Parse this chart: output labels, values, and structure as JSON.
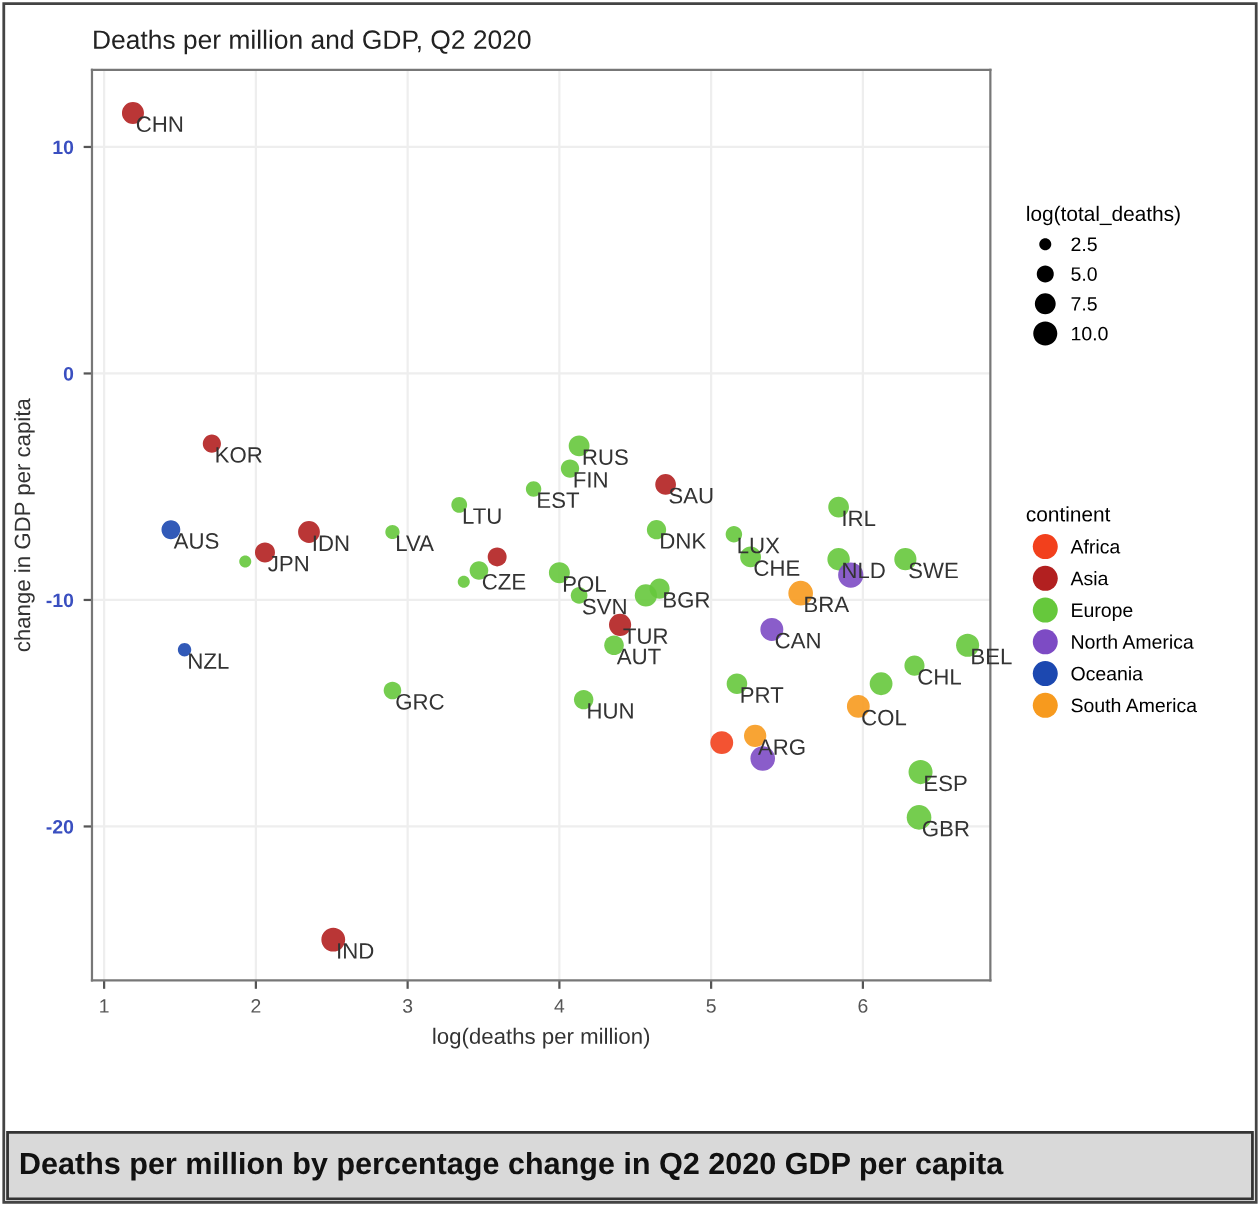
{
  "chart_data": {
    "type": "bubble",
    "title": "Deaths per million and GDP, Q2 2020",
    "xlabel": "log(deaths per million)",
    "ylabel": "change in GDP per capita",
    "legend_title": "continent",
    "xlim": [
      0.92,
      6.84
    ],
    "ylim": [
      -26.8,
      13.4
    ],
    "xticks": [
      1,
      2,
      3,
      4,
      5,
      6
    ],
    "yticks": [
      -20,
      -10,
      0,
      10
    ],
    "grid": true,
    "legend": "right",
    "size_legend": [
      2.5,
      {
        "value": 5,
        "label": "5.0"
      },
      7.5,
      {
        "value": 10,
        "label": "10.0"
      }
    ],
    "series": [
      {
        "name": "Africa",
        "color": "#f2401c",
        "x": [
          5.07
        ],
        "values": [
          -16.3
        ],
        "sizes": [
          9.0
        ]
      },
      {
        "name": "Asia",
        "color": "#b22020",
        "x": [
          1.19,
          1.71,
          2.06,
          2.35,
          2.51,
          3.59,
          4.7,
          4.4
        ],
        "values": [
          11.5,
          -3.1,
          -7.9,
          -7.0,
          -25.0,
          -8.1,
          -4.9,
          -11.1
        ],
        "sizes": [
          8.4,
          5.7,
          6.9,
          8.2,
          9.8,
          6.2,
          7.4,
          8.5
        ]
      },
      {
        "name": "Europe",
        "color": "#66c83c",
        "x": [
          1.93,
          2.9,
          2.9,
          3.34,
          3.37,
          3.47,
          3.83,
          4.0,
          4.13,
          4.07,
          4.13,
          4.16,
          4.36,
          4.64,
          4.66,
          4.57,
          5.15,
          5.26,
          5.17,
          5.84,
          5.84,
          6.28,
          6.12,
          6.34,
          6.38,
          6.37,
          6.69
        ],
        "values": [
          -8.3,
          -7.0,
          -14.0,
          -5.8,
          -9.2,
          -8.7,
          -5.1,
          -8.8,
          -3.2,
          -4.2,
          -9.8,
          -14.4,
          -12.0,
          -6.9,
          -9.5,
          -9.8,
          -7.1,
          -8.1,
          -13.7,
          -5.9,
          -8.2,
          -8.2,
          -13.7,
          -12.9,
          -17.6,
          -19.6,
          -12.0
        ],
        "sizes": [
          2.5,
          3.5,
          5.3,
          4.3,
          2.5,
          6.0,
          4.1,
          7.6,
          7.5,
          5.8,
          4.8,
          6.5,
          6.6,
          6.4,
          7.0,
          8.5,
          4.7,
          7.5,
          7.3,
          7.4,
          8.7,
          8.5,
          9.0,
          7.0,
          10.0,
          10.5,
          9.2
        ]
      },
      {
        "name": "North America",
        "color": "#7d4bc4",
        "x": [
          5.4,
          5.34,
          5.92
        ],
        "values": [
          -11.3,
          -17.0,
          -8.9
        ],
        "sizes": [
          9.1,
          10.5,
          11.0
        ]
      },
      {
        "name": "Oceania",
        "color": "#1c48b0",
        "x": [
          1.44,
          1.53
        ],
        "values": [
          -6.9,
          -12.2
        ],
        "sizes": [
          6.1,
          3.1
        ]
      },
      {
        "name": "South America",
        "color": "#f79a1e",
        "x": [
          5.59,
          5.97,
          5.29
        ],
        "values": [
          -9.7,
          -14.7,
          -16.0
        ],
        "sizes": [
          10.5,
          9.0,
          8.6
        ]
      }
    ],
    "annotations": [
      "log(total_deaths)",
      "Deaths per million by percentage change in Q2 2020 GDP per capita",
      {
        "text": "CHN",
        "x": 1.19,
        "y": 11.5
      },
      {
        "text": "KOR",
        "x": 1.71,
        "y": -3.1
      },
      {
        "text": "JPN",
        "x": 2.06,
        "y": -7.9
      },
      {
        "text": "IDN",
        "x": 2.35,
        "y": -7.0
      },
      {
        "text": "IND",
        "x": 2.51,
        "y": -25.0
      },
      {
        "text": "SAU",
        "x": 4.7,
        "y": -4.9
      },
      {
        "text": "TUR",
        "x": 4.4,
        "y": -11.1
      },
      {
        "text": "AUS",
        "x": 1.44,
        "y": -6.9
      },
      {
        "text": "NZL",
        "x": 1.53,
        "y": -12.2
      },
      {
        "text": "LVA",
        "x": 2.9,
        "y": -7.0
      },
      {
        "text": "GRC",
        "x": 2.9,
        "y": -14.0
      },
      {
        "text": "LTU",
        "x": 3.34,
        "y": -5.8
      },
      {
        "text": "CZE",
        "x": 3.47,
        "y": -8.7
      },
      {
        "text": "EST",
        "x": 3.83,
        "y": -5.1
      },
      {
        "text": "POL",
        "x": 4.0,
        "y": -8.8
      },
      {
        "text": "RUS",
        "x": 4.13,
        "y": -3.2
      },
      {
        "text": "FIN",
        "x": 4.07,
        "y": -4.2
      },
      {
        "text": "SVN",
        "x": 4.13,
        "y": -9.8
      },
      {
        "text": "HUN",
        "x": 4.16,
        "y": -14.4
      },
      {
        "text": "AUT",
        "x": 4.36,
        "y": -12.0
      },
      {
        "text": "DNK",
        "x": 4.64,
        "y": -6.9
      },
      {
        "text": "BGR",
        "x": 4.66,
        "y": -9.5
      },
      {
        "text": "LUX",
        "x": 5.15,
        "y": -7.1
      },
      {
        "text": "CHE",
        "x": 5.26,
        "y": -8.1
      },
      {
        "text": "PRT",
        "x": 5.17,
        "y": -13.7
      },
      {
        "text": "IRL",
        "x": 5.84,
        "y": -5.9
      },
      {
        "text": "NLD",
        "x": 5.84,
        "y": -8.2
      },
      {
        "text": "SWE",
        "x": 6.28,
        "y": -8.2
      },
      {
        "text": "CHL",
        "x": 6.34,
        "y": -12.9
      },
      {
        "text": "ESP",
        "x": 6.38,
        "y": -17.6
      },
      {
        "text": "GBR",
        "x": 6.37,
        "y": -19.6
      },
      {
        "text": "BEL",
        "x": 6.69,
        "y": -12.0
      },
      {
        "text": "CAN",
        "x": 5.4,
        "y": -11.3
      },
      {
        "text": "BRA",
        "x": 5.59,
        "y": -9.7
      },
      {
        "text": "COL",
        "x": 5.97,
        "y": -14.7
      },
      {
        "text": "ARG",
        "x": 5.29,
        "y": -16.0
      }
    ]
  }
}
